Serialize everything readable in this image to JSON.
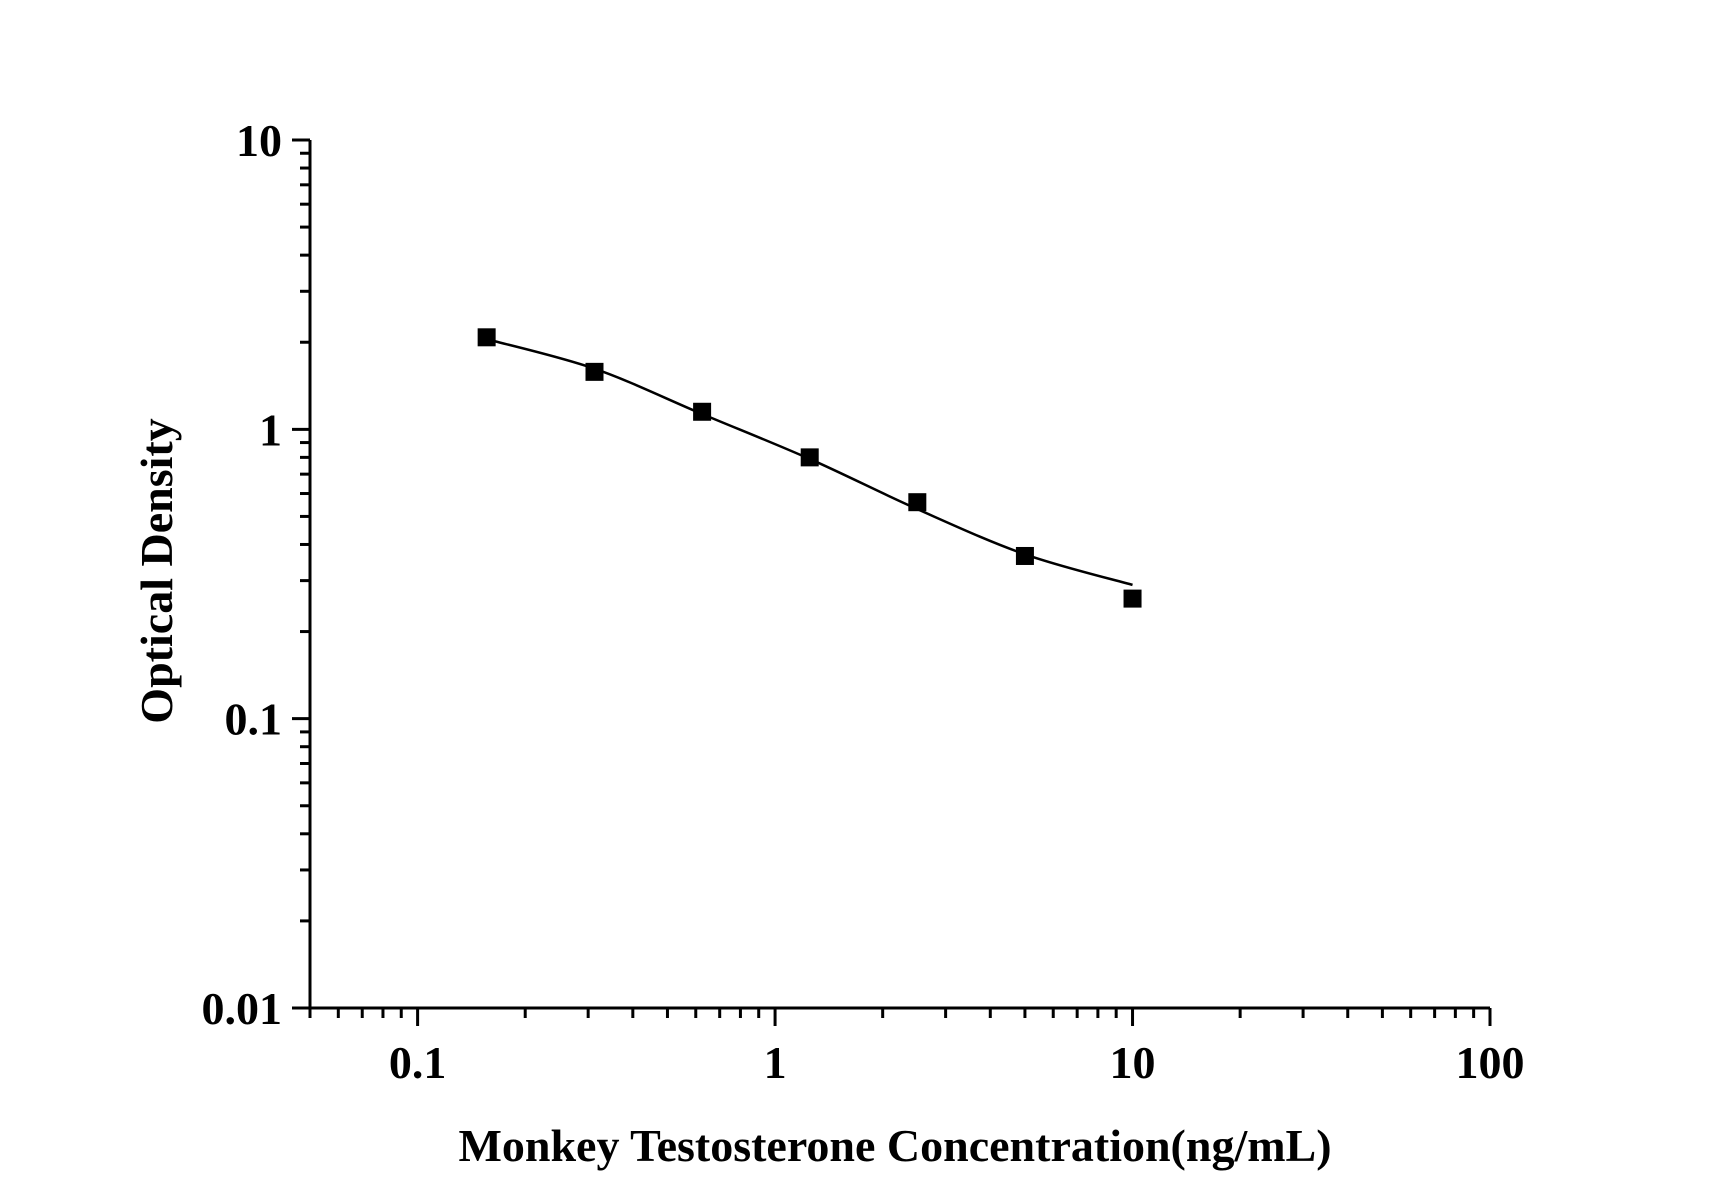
{
  "chart_data": {
    "type": "scatter",
    "title": "",
    "xlabel": "Monkey Testosterone Concentration(ng/mL)",
    "ylabel": "Optical Density",
    "x_scale": "log",
    "y_scale": "log",
    "xlim": [
      0.05,
      100
    ],
    "ylim": [
      0.01,
      10
    ],
    "x_tick_labels": [
      "0.1",
      "1",
      "10",
      "100"
    ],
    "y_tick_labels": [
      "0.01",
      "0.1",
      "1",
      "10"
    ],
    "grid": false,
    "legend": "none",
    "marker_color": "#000000",
    "series": [
      {
        "marker": "square",
        "x": [
          0.156,
          0.3125,
          0.625,
          1.25,
          2.5,
          5,
          10
        ],
        "y": [
          2.08,
          1.58,
          1.15,
          0.8,
          0.56,
          0.365,
          0.26
        ]
      }
    ],
    "fit_curve": {
      "x": [
        0.156,
        0.3125,
        0.625,
        1.25,
        2.5,
        5,
        10
      ],
      "y": [
        2.05,
        1.62,
        1.13,
        0.79,
        0.53,
        0.37,
        0.29
      ]
    }
  }
}
